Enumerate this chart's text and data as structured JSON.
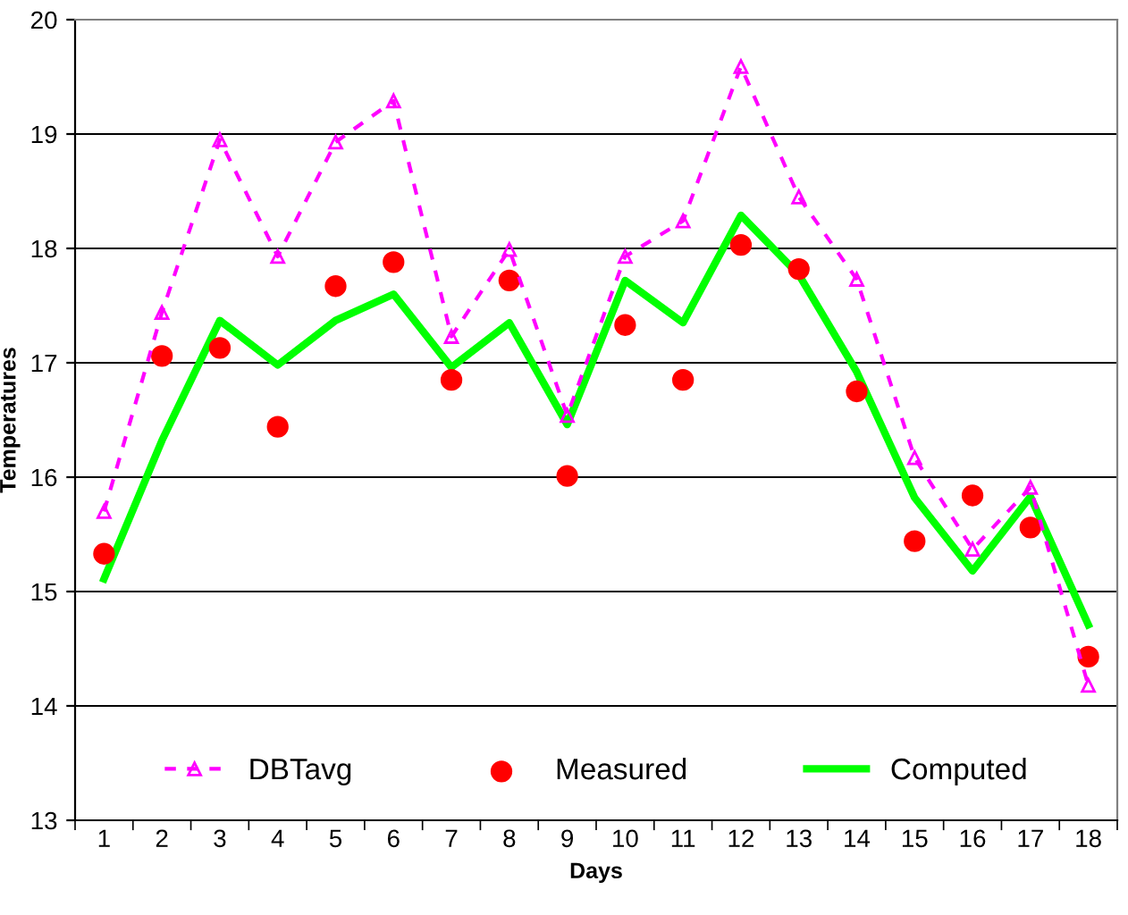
{
  "chart_data": {
    "type": "line",
    "xlabel": "Days",
    "ylabel": "Temperatures",
    "categories": [
      "1",
      "2",
      "3",
      "4",
      "5",
      "6",
      "7",
      "8",
      "9",
      "10",
      "11",
      "12",
      "13",
      "14",
      "15",
      "16",
      "17",
      "18"
    ],
    "series": [
      {
        "name": "DBTavg",
        "color": "#ff00ff",
        "line_style": "dashed",
        "marker": "triangle",
        "values": [
          15.7,
          17.44,
          18.95,
          17.93,
          18.93,
          19.29,
          17.23,
          17.99,
          16.54,
          17.93,
          18.24,
          19.59,
          18.45,
          17.73,
          16.17,
          15.37,
          15.91,
          14.18
        ]
      },
      {
        "name": "Measured",
        "type": "scatter",
        "color": "#ff0000",
        "marker": "circle",
        "values": [
          15.33,
          17.06,
          17.13,
          16.44,
          17.67,
          17.88,
          16.85,
          17.72,
          16.01,
          17.33,
          16.85,
          18.03,
          17.82,
          16.75,
          15.44,
          15.84,
          15.56,
          14.43
        ]
      },
      {
        "name": "Computed",
        "color": "#00ff00",
        "line_style": "solid",
        "marker": "none",
        "values": [
          15.11,
          16.32,
          17.37,
          16.98,
          17.37,
          17.6,
          16.96,
          17.35,
          16.46,
          17.72,
          17.35,
          18.29,
          17.77,
          16.92,
          15.82,
          15.18,
          15.83,
          14.71
        ]
      }
    ],
    "ylim": [
      13,
      20
    ],
    "yticks": [
      13,
      14,
      15,
      16,
      17,
      18,
      19,
      20
    ],
    "grid": "y",
    "legend": "bottom"
  }
}
